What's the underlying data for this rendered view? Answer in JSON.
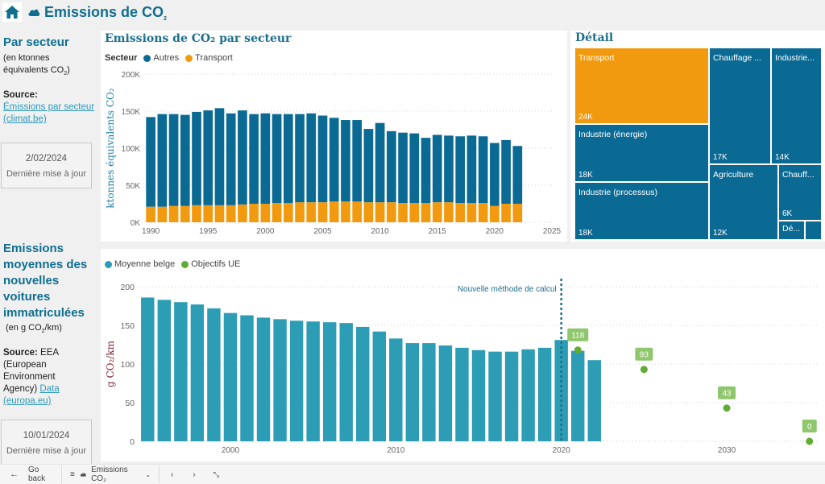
{
  "header": {
    "title": "Emissions de CO",
    "title_sub": "2",
    "home_icon": "home-icon",
    "cloud_icon": "cloud-icon"
  },
  "colors": {
    "brand": "#0f6e8f",
    "autres": "#0b6a94",
    "transport": "#f29a0f",
    "moyenne": "#2d9db5",
    "objectifs": "#62ab34",
    "objectifs_label_bg": "#8fc76c",
    "treemap_blue": "#0b6a94",
    "treemap_orange": "#f29a0f"
  },
  "section1": {
    "heading": "Par secteur",
    "unit_line1": "(en ktonnes",
    "unit_line2": "équivalents CO",
    "unit_sub": "2",
    "unit_close": ")",
    "source_label": "Source:",
    "source_link": "Émissions par secteur (climat.be)",
    "date": "2/02/2024",
    "date_label": "Dernière mise à jour"
  },
  "section2": {
    "heading": "Emissions moyennes des nouvelles voitures immatriculées",
    "unit": "(en g CO",
    "unit_sub": "2",
    "unit_close": "/km)",
    "source_label": "Source:",
    "source_text": "EEA (European Environment Agency)",
    "source_link": "Data (europa.eu)",
    "date": "10/01/2024",
    "date_label": "Dernière mise à jour"
  },
  "chart_data": [
    {
      "type": "bar",
      "stacked": true,
      "title": "Emissions de CO₂ par secteur",
      "legend_title": "Secteur",
      "legend": [
        "Autres",
        "Transport"
      ],
      "legend_position": "top-left",
      "xlabel": "",
      "ylabel": "ktonnes équivalents CO₂",
      "ylim": [
        0,
        200
      ],
      "yticks": [
        "0K",
        "50K",
        "100K",
        "150K",
        "200K"
      ],
      "xticks": [
        "1990",
        "1995",
        "2000",
        "2005",
        "2010",
        "2015",
        "2020",
        "2025"
      ],
      "xlim": [
        1989.5,
        2025
      ],
      "grid": true,
      "categories": [
        1990,
        1991,
        1992,
        1993,
        1994,
        1995,
        1996,
        1997,
        1998,
        1999,
        2000,
        2001,
        2002,
        2003,
        2004,
        2005,
        2006,
        2007,
        2008,
        2009,
        2010,
        2011,
        2012,
        2013,
        2014,
        2015,
        2016,
        2017,
        2018,
        2019,
        2020,
        2021,
        2022
      ],
      "series": [
        {
          "name": "Transport",
          "values": [
            21,
            21,
            22,
            22,
            23,
            23,
            23,
            23,
            24,
            25,
            25,
            26,
            26,
            27,
            27,
            27,
            28,
            28,
            28,
            27,
            27,
            27,
            26,
            26,
            26,
            27,
            27,
            26,
            26,
            26,
            22,
            25,
            25
          ]
        },
        {
          "name": "Autres",
          "values": [
            121,
            125,
            124,
            123,
            126,
            128,
            131,
            124,
            127,
            121,
            122,
            120,
            120,
            119,
            120,
            117,
            113,
            110,
            110,
            99,
            107,
            96,
            95,
            94,
            88,
            91,
            90,
            90,
            91,
            90,
            85,
            86,
            78
          ]
        }
      ]
    },
    {
      "type": "treemap",
      "title": "Détail",
      "items": [
        {
          "name": "Transport",
          "label": "Transport",
          "value": "24K",
          "color": "orange"
        },
        {
          "name": "Industrie (énergie)",
          "label": "Industrie (énergie)",
          "value": "18K",
          "color": "blue"
        },
        {
          "name": "Industrie (processus)",
          "label": "Industrie (processus)",
          "value": "18K",
          "color": "blue"
        },
        {
          "name": "Chauffage ...",
          "label": "Chauffage ...",
          "value": "17K",
          "color": "blue"
        },
        {
          "name": "Industrie...",
          "label": "Industrie...",
          "value": "14K",
          "color": "blue"
        },
        {
          "name": "Agriculture",
          "label": "Agriculture",
          "value": "12K",
          "color": "blue"
        },
        {
          "name": "Chauff...",
          "label": "Chauff...",
          "value": "6K",
          "color": "blue"
        },
        {
          "name": "Dé...",
          "label": "Dé...",
          "value": "",
          "color": "blue"
        },
        {
          "name": "",
          "label": "",
          "value": "",
          "color": "blue"
        }
      ]
    },
    {
      "type": "bar",
      "title": "",
      "legend": [
        "Moyenne belge",
        "Objectifs UE"
      ],
      "legend_position": "top-left",
      "xlabel": "",
      "ylabel": "g CO₂/km",
      "ylim": [
        0,
        200
      ],
      "yticks": [
        "0",
        "50",
        "100",
        "150",
        "200"
      ],
      "xticks": [
        "2000",
        "2010",
        "2020",
        "2030"
      ],
      "xlim": [
        1994.5,
        2035.5
      ],
      "grid": true,
      "categories": [
        1995,
        1996,
        1997,
        1998,
        1999,
        2000,
        2001,
        2002,
        2003,
        2004,
        2005,
        2006,
        2007,
        2008,
        2009,
        2010,
        2011,
        2012,
        2013,
        2014,
        2015,
        2016,
        2017,
        2018,
        2019,
        2020,
        2021,
        2022
      ],
      "series": [
        {
          "name": "Moyenne belge",
          "values": [
            186,
            183,
            180,
            177,
            172,
            166,
            163,
            160,
            158,
            156,
            155,
            154,
            153,
            148,
            142,
            133,
            127,
            127,
            124,
            121,
            118,
            116,
            116,
            119,
            121,
            131,
            117,
            105
          ]
        },
        {
          "name": "Objectifs UE",
          "type": "scatter",
          "points": [
            {
              "x": 2021,
              "y": 118,
              "label": "118"
            },
            {
              "x": 2025,
              "y": 93,
              "label": "93"
            },
            {
              "x": 2030,
              "y": 43,
              "label": "43"
            },
            {
              "x": 2035,
              "y": 0,
              "label": "0"
            }
          ]
        }
      ],
      "annotation": {
        "x": 2020,
        "text": "Nouvelle méthode de calcul",
        "style": "dashed-vertical-line"
      }
    }
  ],
  "footer": {
    "back_label": "Go back",
    "page_label": "Emissions CO₂",
    "icons": [
      "arrow-left-icon",
      "list-icon",
      "cloud-icon",
      "chevron-down-icon",
      "chevron-left-icon",
      "chevron-right-icon",
      "collapse-icon"
    ]
  }
}
